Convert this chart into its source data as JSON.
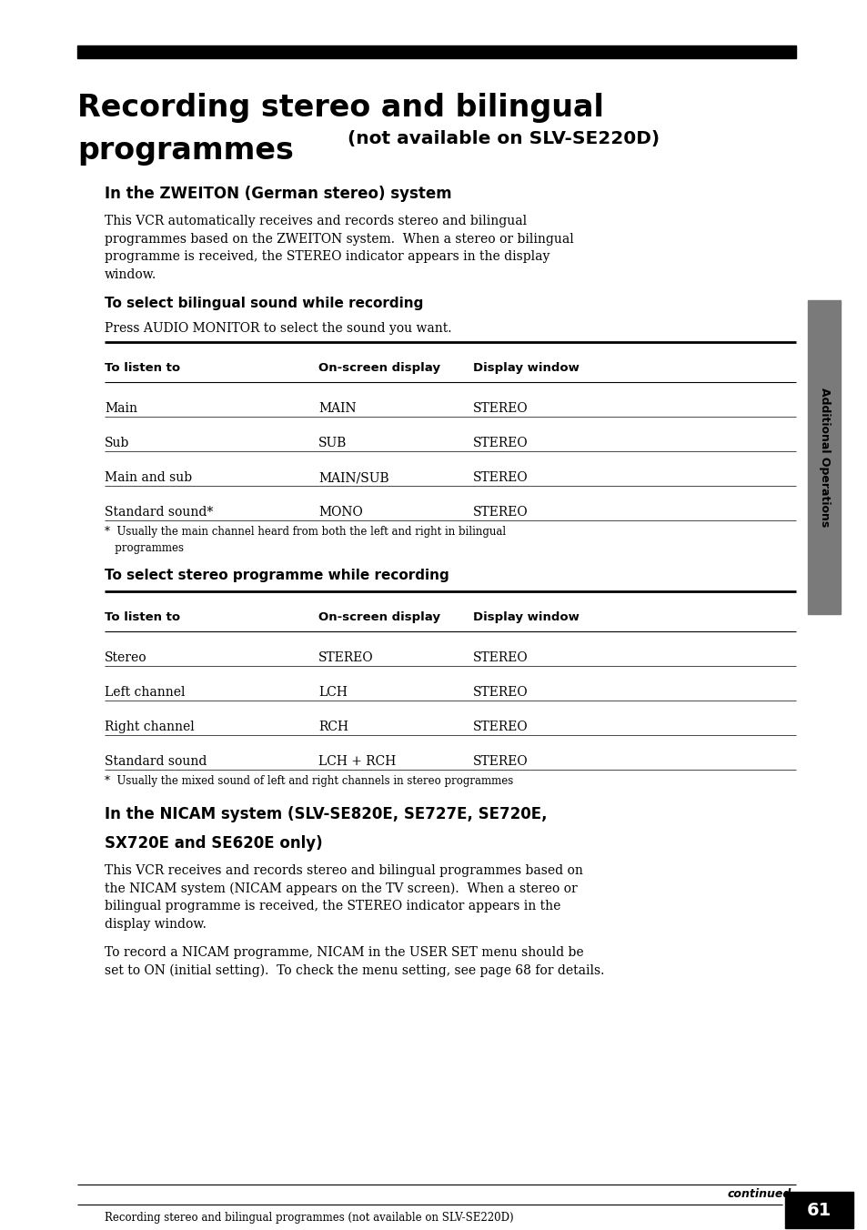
{
  "bg_color": "#ffffff",
  "black_bar_color": "#000000",
  "title_line1": "Recording stereo and bilingual",
  "title_line2_large": "programmes",
  "title_line2_small": " (not available on SLV-SE220D)",
  "section1_heading": "In the ZWEITON (German stereo) system",
  "section1_body": [
    "This VCR automatically receives and records stereo and bilingual",
    "programmes based on the ZWEITON system.  When a stereo or bilingual",
    "programme is received, the STEREO indicator appears in the display",
    "window."
  ],
  "subsection1_heading": "To select bilingual sound while recording",
  "subsection1_intro": "Press AUDIO MONITOR to select the sound you want.",
  "table1_headers": [
    "To listen to",
    "On-screen display",
    "Display window"
  ],
  "table1_rows": [
    [
      "Main",
      "MAIN",
      "STEREO"
    ],
    [
      "Sub",
      "SUB",
      "STEREO"
    ],
    [
      "Main and sub",
      "MAIN/SUB",
      "STEREO"
    ],
    [
      "Standard sound*",
      "MONO",
      "STEREO"
    ]
  ],
  "table1_footnote": [
    "*  Usually the main channel heard from both the left and right in bilingual",
    "   programmes"
  ],
  "subsection2_heading": "To select stereo programme while recording",
  "table2_headers": [
    "To listen to",
    "On-screen display",
    "Display window"
  ],
  "table2_rows": [
    [
      "Stereo",
      "STEREO",
      "STEREO"
    ],
    [
      "Left channel",
      "LCH",
      "STEREO"
    ],
    [
      "Right channel",
      "RCH",
      "STEREO"
    ],
    [
      "Standard sound",
      "LCH + RCH",
      "STEREO"
    ]
  ],
  "table2_footnote": "*  Usually the mixed sound of left and right channels in stereo programmes",
  "section2_heading_line1": "In the NICAM system (SLV-SE820E, SE727E, SE720E,",
  "section2_heading_line2": "SX720E and SE620E only)",
  "section2_body1": [
    "This VCR receives and records stereo and bilingual programmes based on",
    "the NICAM system (NICAM appears on the TV screen).  When a stereo or",
    "bilingual programme is received, the STEREO indicator appears in the",
    "display window."
  ],
  "section2_body2": [
    "To record a NICAM programme, NICAM in the USER SET menu should be",
    "set to ON (initial setting).  To check the menu setting, see page 68 for details."
  ],
  "footer_continued": "continued",
  "footer_text": "Recording stereo and bilingual programmes (not available on SLV-SE220D)",
  "footer_page": "61",
  "sidebar_text": "Additional Operations",
  "sidebar_color": "#7a7a7a"
}
